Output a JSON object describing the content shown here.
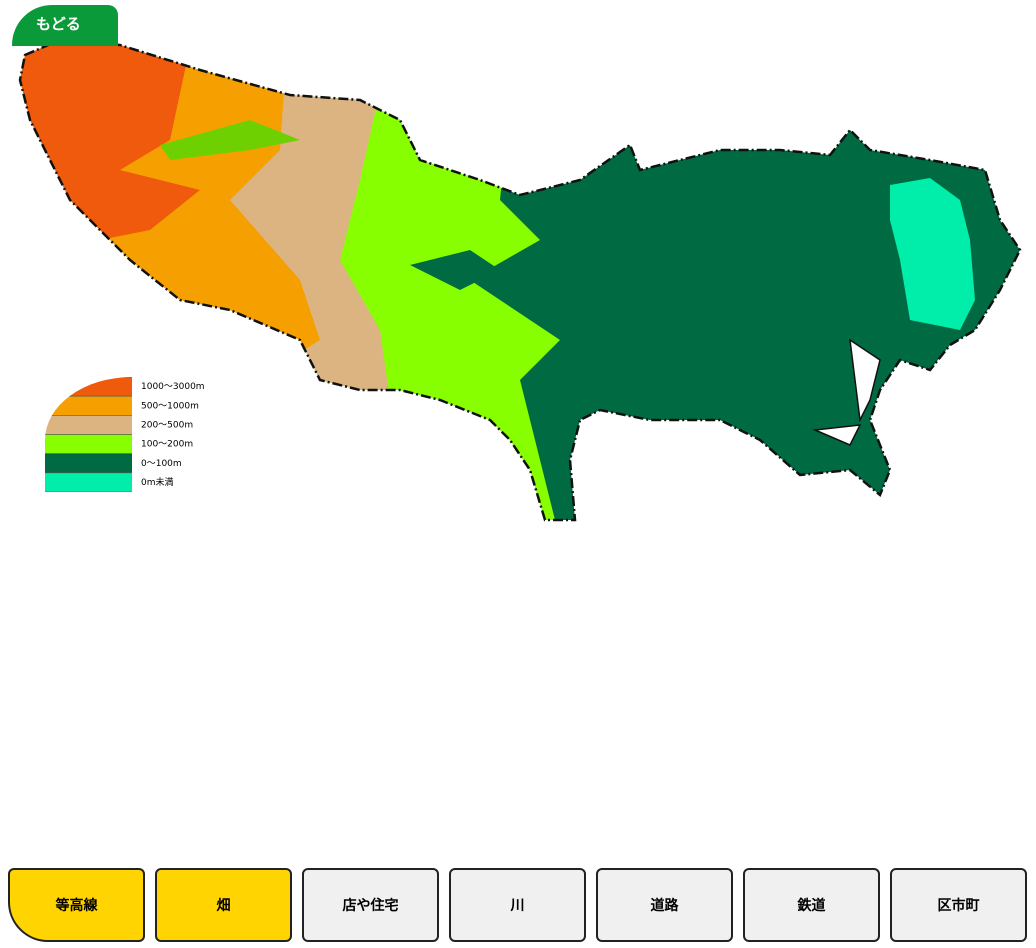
{
  "back_button": "もどる",
  "legend": [
    {
      "label": "1000～3000m",
      "color": "#f05a0c"
    },
    {
      "label": "500～1000m",
      "color": "#f5a000"
    },
    {
      "label": "200～500m",
      "color": "#dcb482"
    },
    {
      "label": "100～200m",
      "color": "#88ff00"
    },
    {
      "label": "0～100m",
      "color": "#006b42"
    },
    {
      "label": "0m未満",
      "color": "#00eeaa"
    }
  ],
  "buttons": [
    {
      "label": "等高線",
      "active": true
    },
    {
      "label": "畑",
      "active": true
    },
    {
      "label": "店や住宅",
      "active": false
    },
    {
      "label": "川",
      "active": false
    },
    {
      "label": "道路",
      "active": false
    },
    {
      "label": "鉄道",
      "active": false
    },
    {
      "label": "区市町",
      "active": false
    }
  ]
}
